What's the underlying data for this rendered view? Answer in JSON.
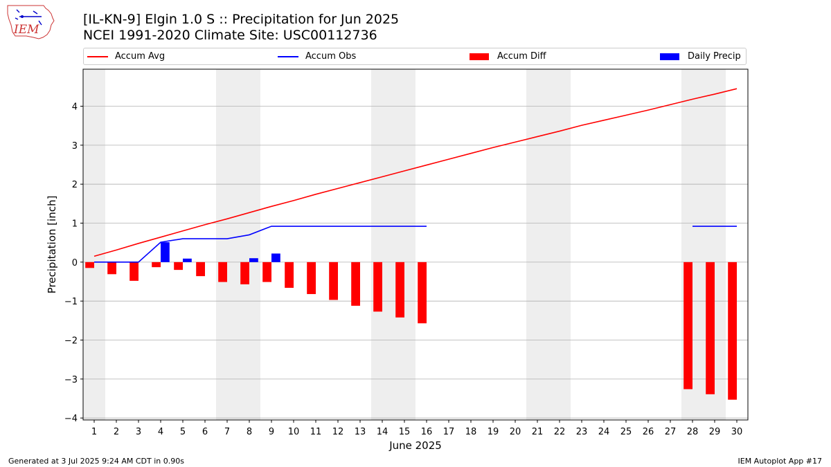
{
  "header": {
    "title_line1": "[IL-KN-9] Elgin 1.0 S :: Precipitation for Jun 2025",
    "title_line2": "NCEI 1991-2020 Climate Site: USC00112736"
  },
  "logo": {
    "text": "IEM"
  },
  "footer": {
    "generated": "Generated at 3 Jul 2025 9:24 AM CDT in 0.90s",
    "app": "IEM Autoplot App #17"
  },
  "colors": {
    "avg": "#ff0000",
    "obs": "#0000ff",
    "diff": "#ff0000",
    "daily": "#0000ff",
    "weekend_shade": "#eeeeee",
    "grid": "#b0b0b0"
  },
  "chart_data": {
    "type": "bar",
    "xlabel": "June 2025",
    "ylabel": "Precipitation [inch]",
    "xlim": [
      0.5,
      30.5
    ],
    "ylim": [
      -4.05,
      4.95
    ],
    "yticks": [
      -4,
      -3,
      -2,
      -1,
      0,
      1,
      2,
      3,
      4
    ],
    "yticklabels": [
      "−4",
      "−3",
      "−2",
      "−1",
      "0",
      "1",
      "2",
      "3",
      "4"
    ],
    "xticks": [
      1,
      2,
      3,
      4,
      5,
      6,
      7,
      8,
      9,
      10,
      11,
      12,
      13,
      14,
      15,
      16,
      17,
      18,
      19,
      20,
      21,
      22,
      23,
      24,
      25,
      26,
      27,
      28,
      29,
      30
    ],
    "grid": "horizontal",
    "legend_placement": "top",
    "weekend_bands": [
      [
        0.5,
        1.5
      ],
      [
        6.5,
        8.5
      ],
      [
        13.5,
        15.5
      ],
      [
        20.5,
        22.5
      ],
      [
        27.5,
        29.5
      ]
    ],
    "series": [
      {
        "name": "Accum Avg",
        "kind": "line",
        "color": "#ff0000",
        "x": [
          1,
          2,
          3,
          4,
          5,
          6,
          7,
          8,
          9,
          10,
          11,
          12,
          13,
          14,
          15,
          16,
          17,
          18,
          19,
          20,
          21,
          22,
          23,
          24,
          25,
          26,
          27,
          28,
          29,
          30
        ],
        "values": [
          0.15,
          0.31,
          0.48,
          0.64,
          0.8,
          0.96,
          1.11,
          1.27,
          1.43,
          1.58,
          1.74,
          1.89,
          2.04,
          2.19,
          2.34,
          2.49,
          2.64,
          2.79,
          2.94,
          3.08,
          3.22,
          3.36,
          3.51,
          3.64,
          3.77,
          3.9,
          4.04,
          4.18,
          4.31,
          4.45
        ]
      },
      {
        "name": "Accum Obs",
        "kind": "line",
        "color": "#0000ff",
        "x": [
          1,
          2,
          3,
          4,
          5,
          6,
          7,
          8,
          9,
          10,
          11,
          12,
          13,
          14,
          15,
          16,
          28,
          29,
          30
        ],
        "values": [
          0,
          0,
          0,
          0.51,
          0.6,
          0.6,
          0.6,
          0.7,
          0.92,
          0.92,
          0.92,
          0.92,
          0.92,
          0.92,
          0.92,
          0.92,
          0.92,
          0.92,
          0.92
        ],
        "gap_after_x": 16
      },
      {
        "name": "Accum Diff",
        "kind": "bar",
        "color": "#ff0000",
        "offset": -0.2,
        "x": [
          1,
          2,
          3,
          4,
          5,
          6,
          7,
          8,
          9,
          10,
          11,
          12,
          13,
          14,
          15,
          16,
          28,
          29,
          30
        ],
        "values": [
          -0.15,
          -0.31,
          -0.48,
          -0.13,
          -0.2,
          -0.36,
          -0.51,
          -0.57,
          -0.51,
          -0.66,
          -0.82,
          -0.97,
          -1.12,
          -1.27,
          -1.42,
          -1.57,
          -3.26,
          -3.39,
          -3.53
        ]
      },
      {
        "name": "Daily Precip",
        "kind": "bar",
        "color": "#0000ff",
        "offset": 0.2,
        "x": [
          4,
          5,
          8,
          9
        ],
        "values": [
          0.51,
          0.09,
          0.1,
          0.22
        ]
      }
    ]
  }
}
